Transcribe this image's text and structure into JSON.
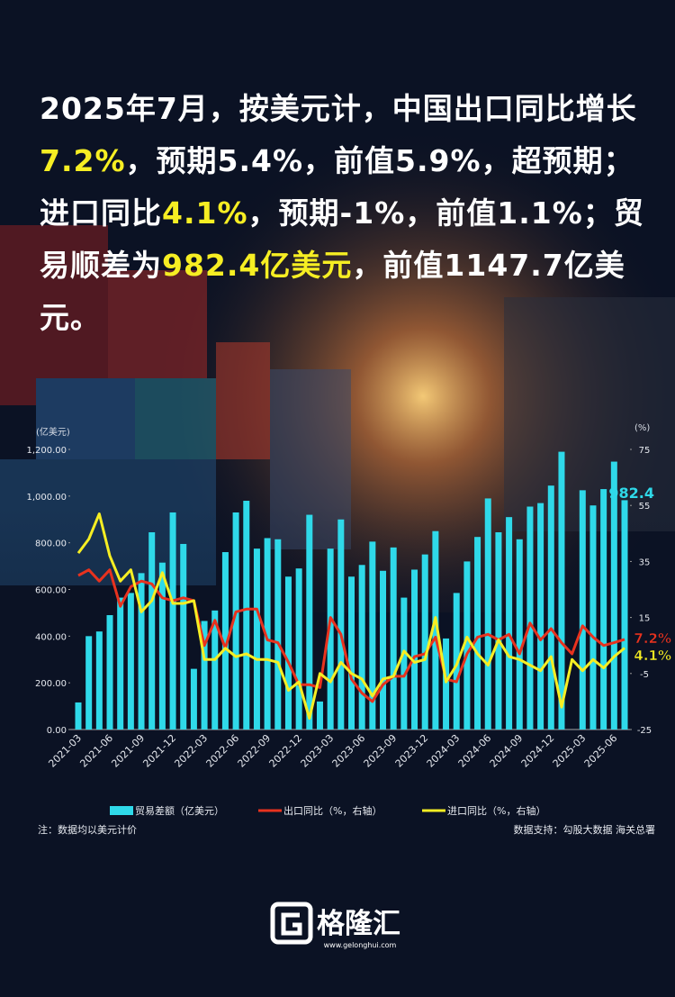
{
  "headline": [
    "2025年7月，按美元计，中国出口同比增长",
    "7.2%",
    "，预期5.4%，前值5.9%，超预期；进口同比",
    "4.1%",
    "，预期-1%，前值1.1%；贸易顺差为",
    "982.4亿美元",
    "，前值1147.7亿美元。"
  ],
  "headline_highlight": [
    false,
    true,
    false,
    true,
    false,
    true,
    false
  ],
  "chart_data": {
    "type": "bar-line",
    "y_label": "(亿美元)",
    "y2_label": "(%)",
    "categories": [
      "2021-03",
      null,
      null,
      "2021-06",
      null,
      null,
      "2021-09",
      null,
      null,
      "2021-12",
      null,
      null,
      "2022-03",
      null,
      null,
      "2022-06",
      null,
      null,
      "2022-09",
      null,
      null,
      "2022-12",
      null,
      null,
      "2023-03",
      null,
      null,
      "2023-06",
      null,
      null,
      "2023-09",
      null,
      null,
      "2023-12",
      null,
      null,
      "2024-03",
      null,
      null,
      "2024-06",
      null,
      null,
      "2024-09",
      null,
      null,
      "2024-12",
      null,
      null,
      "2025-03",
      null,
      null,
      "2025-06",
      null
    ],
    "ylim": [
      0,
      1200
    ],
    "yticks": [
      {
        "value": 0,
        "label": "0.00"
      },
      {
        "value": 200,
        "label": "200.00"
      },
      {
        "value": 400,
        "label": "400.00"
      },
      {
        "value": 600,
        "label": "600.00"
      },
      {
        "value": 800,
        "label": "800.00"
      },
      {
        "value": 1000,
        "label": "1,000.00"
      },
      {
        "value": 1200,
        "label": "1,200.00"
      }
    ],
    "y2lim": [
      -25,
      75
    ],
    "y2ticks": [
      -25,
      -5,
      15,
      35,
      55,
      75
    ],
    "series": [
      {
        "name": "贸易差额（亿美元）",
        "kind": "bar",
        "color": "#2fd9e9",
        "values": [
          116,
          400,
          420,
          490,
          565,
          585,
          670,
          845,
          715,
          930,
          795,
          260,
          465,
          510,
          760,
          930,
          980,
          775,
          820,
          815,
          655,
          690,
          920,
          120,
          775,
          900,
          655,
          705,
          805,
          680,
          780,
          565,
          685,
          750,
          850,
          390,
          585,
          720,
          825,
          990,
          845,
          910,
          815,
          955,
          970,
          1045,
          1190,
          null,
          1025,
          960,
          1030,
          1147.7,
          982.4
        ],
        "end_label": "982.4"
      },
      {
        "name": "出口同比（%，右轴）",
        "kind": "line",
        "axis": "y2",
        "color": "#e8321e",
        "values": [
          30,
          32,
          28,
          32,
          19,
          26,
          28,
          27,
          22,
          21,
          22,
          21,
          5,
          14,
          4,
          17,
          18,
          18,
          7,
          6,
          -1,
          -9,
          -9,
          -10,
          15,
          9,
          -7,
          -12,
          -15,
          -9,
          -6,
          -6,
          1,
          2,
          8,
          -7,
          -8,
          2,
          8,
          9,
          7,
          9,
          2,
          13,
          7,
          11,
          6,
          2,
          12,
          8,
          5,
          6,
          7.2
        ],
        "value_labels": [
          null,
          null,
          null,
          null,
          null,
          null,
          null,
          null,
          null,
          null,
          null,
          null,
          null,
          null,
          null,
          null,
          null,
          null,
          null,
          null,
          null,
          null,
          null,
          null,
          null,
          null,
          null,
          null,
          null,
          null,
          null,
          null,
          null,
          null,
          null,
          null,
          null,
          null,
          null,
          null,
          null,
          null,
          null,
          null,
          null,
          null,
          null,
          null,
          null,
          null,
          null,
          null,
          "7.2%"
        ]
      },
      {
        "name": "进口同比（%，右轴）",
        "kind": "line",
        "axis": "y2",
        "color": "#f6ee23",
        "values": [
          38,
          43,
          52,
          37,
          28,
          32,
          17,
          21,
          31,
          20,
          20,
          21,
          0,
          0,
          4,
          1,
          2,
          0,
          0,
          -1,
          -11,
          -8,
          -21,
          -5,
          -8,
          -1,
          -5,
          -7,
          -13,
          -7,
          -6,
          3,
          -1,
          0,
          15,
          -8,
          -2,
          8,
          2,
          -2,
          7,
          1,
          0,
          -2,
          -4,
          1,
          -17,
          0,
          -4,
          0,
          -3,
          1,
          4.1
        ],
        "value_labels": [
          null,
          null,
          null,
          null,
          null,
          null,
          null,
          null,
          null,
          null,
          null,
          null,
          null,
          null,
          null,
          null,
          null,
          null,
          null,
          null,
          null,
          null,
          null,
          null,
          null,
          null,
          null,
          null,
          null,
          null,
          null,
          null,
          null,
          null,
          null,
          null,
          null,
          null,
          null,
          null,
          null,
          null,
          null,
          null,
          null,
          null,
          null,
          null,
          null,
          null,
          null,
          null,
          "4.1%"
        ]
      }
    ],
    "note": "注：数据均以美元计价",
    "source": "数据支持：勾股大数据 海关总署"
  },
  "logo": {
    "name": "格隆汇",
    "url": "www.gelonghui.com"
  }
}
